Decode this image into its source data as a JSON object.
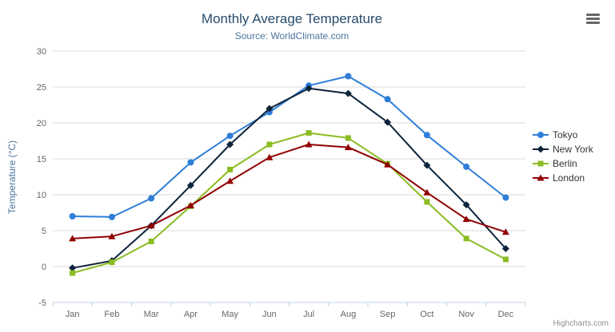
{
  "header": {
    "title": "Monthly Average Temperature",
    "subtitle": "Source: WorldClimate.com"
  },
  "export_menu_icon": "hamburger-icon",
  "credits": {
    "label": "Highcharts.com"
  },
  "chart_data": {
    "type": "line",
    "categories": [
      "Jan",
      "Feb",
      "Mar",
      "Apr",
      "May",
      "Jun",
      "Jul",
      "Aug",
      "Sep",
      "Oct",
      "Nov",
      "Dec"
    ],
    "ylabel": "Temperature (°C)",
    "ylim": [
      -5,
      30
    ],
    "ytick_step": 5,
    "grid": true,
    "legend_position": "right",
    "series": [
      {
        "name": "Tokyo",
        "color": "#2f7ed8",
        "marker": "circle",
        "values": [
          7.0,
          6.9,
          9.5,
          14.5,
          18.2,
          21.5,
          25.2,
          26.5,
          23.3,
          18.3,
          13.9,
          9.6
        ]
      },
      {
        "name": "New York",
        "color": "#0d233a",
        "marker": "diamond",
        "values": [
          -0.2,
          0.8,
          5.7,
          11.3,
          17.0,
          22.0,
          24.8,
          24.1,
          20.1,
          14.1,
          8.6,
          2.5
        ]
      },
      {
        "name": "Berlin",
        "color": "#8bbc21",
        "marker": "square",
        "values": [
          -0.9,
          0.6,
          3.5,
          8.4,
          13.5,
          17.0,
          18.6,
          17.9,
          14.3,
          9.0,
          3.9,
          1.0
        ]
      },
      {
        "name": "London",
        "color": "#910000",
        "marker": "triangle",
        "values": [
          3.9,
          4.2,
          5.7,
          8.5,
          11.9,
          15.2,
          17.0,
          16.6,
          14.2,
          10.3,
          6.6,
          4.8
        ]
      }
    ],
    "axis_colors": {
      "grid": "#d8d8d8",
      "axis_line": "#c0d0e0",
      "labels": "#666666"
    }
  }
}
